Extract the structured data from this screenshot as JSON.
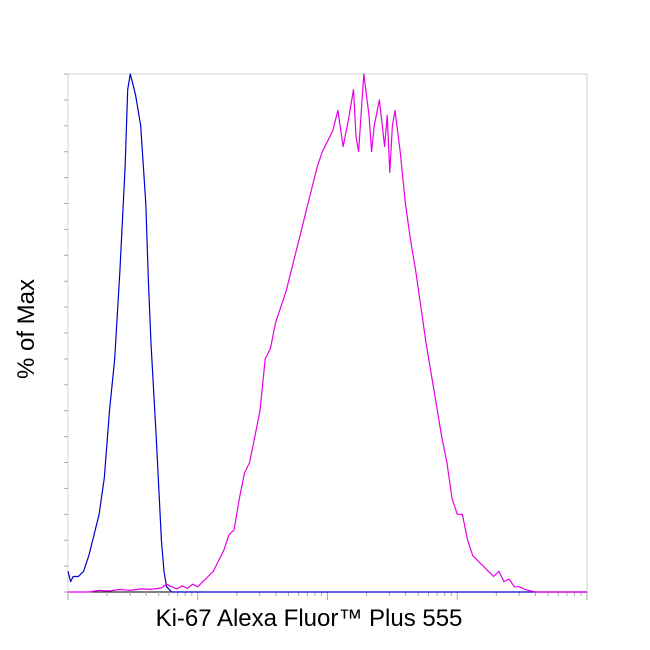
{
  "chart_data": {
    "type": "line",
    "title": "",
    "xlabel": "Ki-67 Alexa Fluor™ Plus 555",
    "ylabel": "% of Max",
    "xlim": [
      0,
      100
    ],
    "ylim": [
      0,
      100
    ],
    "grid": false,
    "series": [
      {
        "color": "#0000cc",
        "points": [
          [
            0,
            4
          ],
          [
            0.5,
            2
          ],
          [
            1,
            3
          ],
          [
            2,
            3
          ],
          [
            3,
            4
          ],
          [
            4,
            7
          ],
          [
            5,
            11
          ],
          [
            6,
            15
          ],
          [
            7,
            22
          ],
          [
            8,
            35
          ],
          [
            9,
            45
          ],
          [
            10,
            62
          ],
          [
            11,
            82
          ],
          [
            11.5,
            97
          ],
          [
            12,
            100
          ],
          [
            13,
            96
          ],
          [
            14,
            90
          ],
          [
            15,
            75
          ],
          [
            15.5,
            60
          ],
          [
            16,
            48
          ],
          [
            17,
            30
          ],
          [
            18,
            10
          ],
          [
            18.5,
            4
          ],
          [
            19,
            1
          ],
          [
            20,
            0
          ],
          [
            26,
            0
          ],
          [
            36,
            0
          ],
          [
            50,
            0
          ],
          [
            65,
            0
          ],
          [
            80,
            0
          ],
          [
            100,
            0
          ]
        ]
      },
      {
        "color": "#e600e6",
        "points": [
          [
            0,
            0
          ],
          [
            4,
            0
          ],
          [
            6,
            0.3
          ],
          [
            8,
            0.2
          ],
          [
            10,
            0.5
          ],
          [
            12,
            0.3
          ],
          [
            14,
            0.6
          ],
          [
            16,
            0.5
          ],
          [
            18,
            0.8
          ],
          [
            19,
            1.5
          ],
          [
            20,
            1
          ],
          [
            21,
            0.6
          ],
          [
            22,
            1.2
          ],
          [
            23,
            0.7
          ],
          [
            24,
            1.5
          ],
          [
            25,
            1
          ],
          [
            26,
            2
          ],
          [
            27,
            3
          ],
          [
            28,
            4
          ],
          [
            29,
            6
          ],
          [
            30,
            8
          ],
          [
            31,
            11
          ],
          [
            32,
            12
          ],
          [
            33,
            18
          ],
          [
            34,
            23
          ],
          [
            35,
            25
          ],
          [
            36,
            30
          ],
          [
            37,
            35
          ],
          [
            38,
            45
          ],
          [
            39,
            47
          ],
          [
            40,
            52
          ],
          [
            41,
            55
          ],
          [
            42,
            58
          ],
          [
            43,
            62
          ],
          [
            44,
            66
          ],
          [
            45,
            70
          ],
          [
            46,
            74
          ],
          [
            47,
            78
          ],
          [
            48,
            82
          ],
          [
            49,
            85
          ],
          [
            50,
            87
          ],
          [
            51,
            89
          ],
          [
            52,
            93
          ],
          [
            53,
            86
          ],
          [
            54,
            91
          ],
          [
            55,
            97
          ],
          [
            55.5,
            88
          ],
          [
            56,
            85
          ],
          [
            57,
            100
          ],
          [
            58,
            92
          ],
          [
            58.5,
            85
          ],
          [
            59,
            90
          ],
          [
            60,
            95
          ],
          [
            61,
            86
          ],
          [
            61.5,
            92
          ],
          [
            62,
            81
          ],
          [
            62.5,
            90
          ],
          [
            63,
            93
          ],
          [
            64,
            85
          ],
          [
            65,
            75
          ],
          [
            66,
            68
          ],
          [
            67,
            62
          ],
          [
            68,
            55
          ],
          [
            69,
            48
          ],
          [
            70,
            42
          ],
          [
            71,
            36
          ],
          [
            72,
            30
          ],
          [
            73,
            25
          ],
          [
            74,
            18
          ],
          [
            75,
            15
          ],
          [
            76,
            15
          ],
          [
            77,
            10
          ],
          [
            78,
            7
          ],
          [
            79,
            6
          ],
          [
            80,
            5
          ],
          [
            81,
            4
          ],
          [
            82,
            3
          ],
          [
            83,
            4
          ],
          [
            84,
            2
          ],
          [
            85,
            2.5
          ],
          [
            86,
            1
          ],
          [
            87,
            1
          ],
          [
            88,
            0.5
          ],
          [
            90,
            0
          ],
          [
            100,
            0
          ]
        ]
      }
    ]
  }
}
